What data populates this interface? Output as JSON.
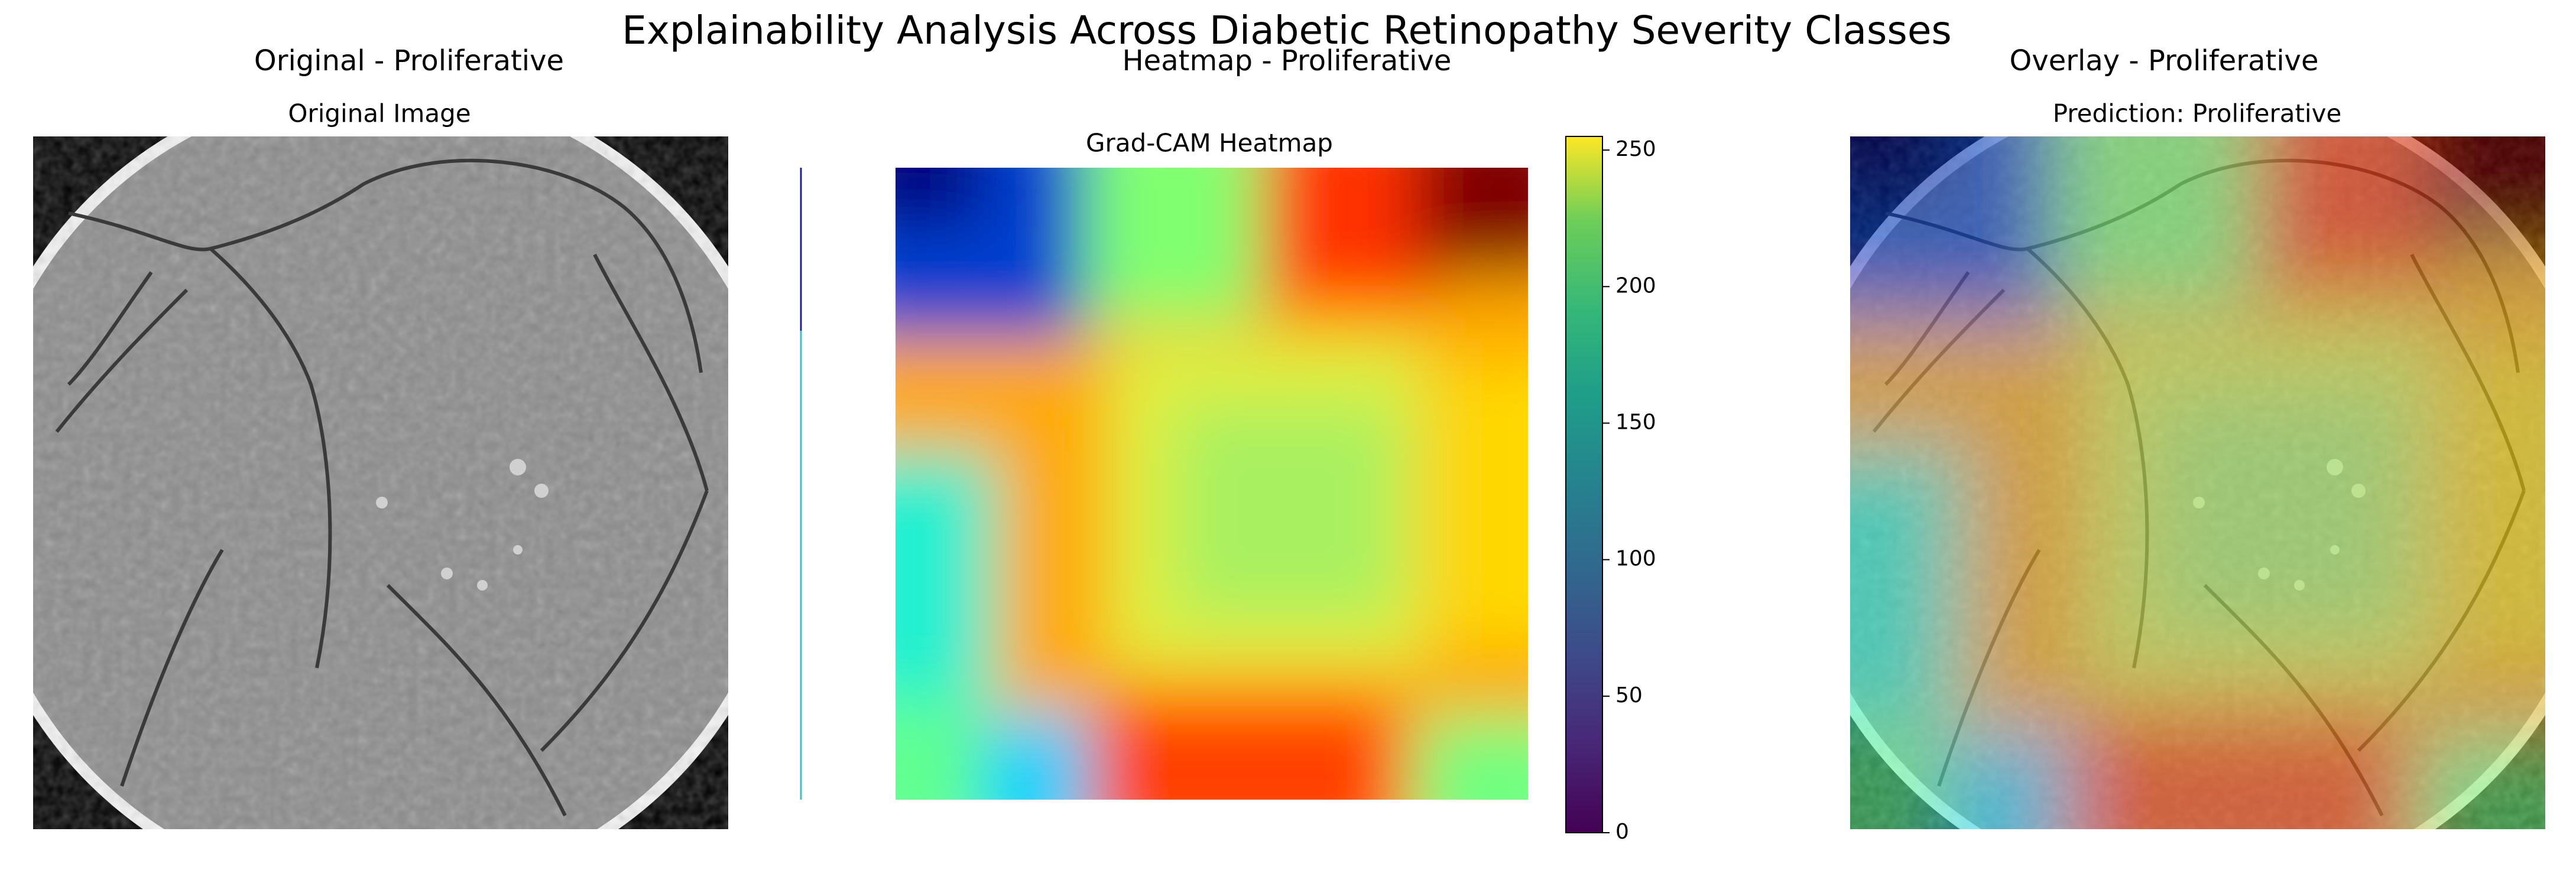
{
  "figure": {
    "title": "Explainability Analysis Across Diabetic Retinopathy Severity Classes",
    "panels": [
      {
        "title": "Original - Proliferative",
        "subtitle": "Original Image"
      },
      {
        "title": "Heatmap - Proliferative",
        "subtitle": "Grad-CAM Heatmap",
        "colorbar": {
          "ylim": [
            0,
            255
          ],
          "yticks": [
            0,
            50,
            100,
            150,
            200,
            250
          ]
        }
      },
      {
        "title": "Overlay - Proliferative",
        "subtitle": "Prediction: Proliferative"
      }
    ]
  }
}
